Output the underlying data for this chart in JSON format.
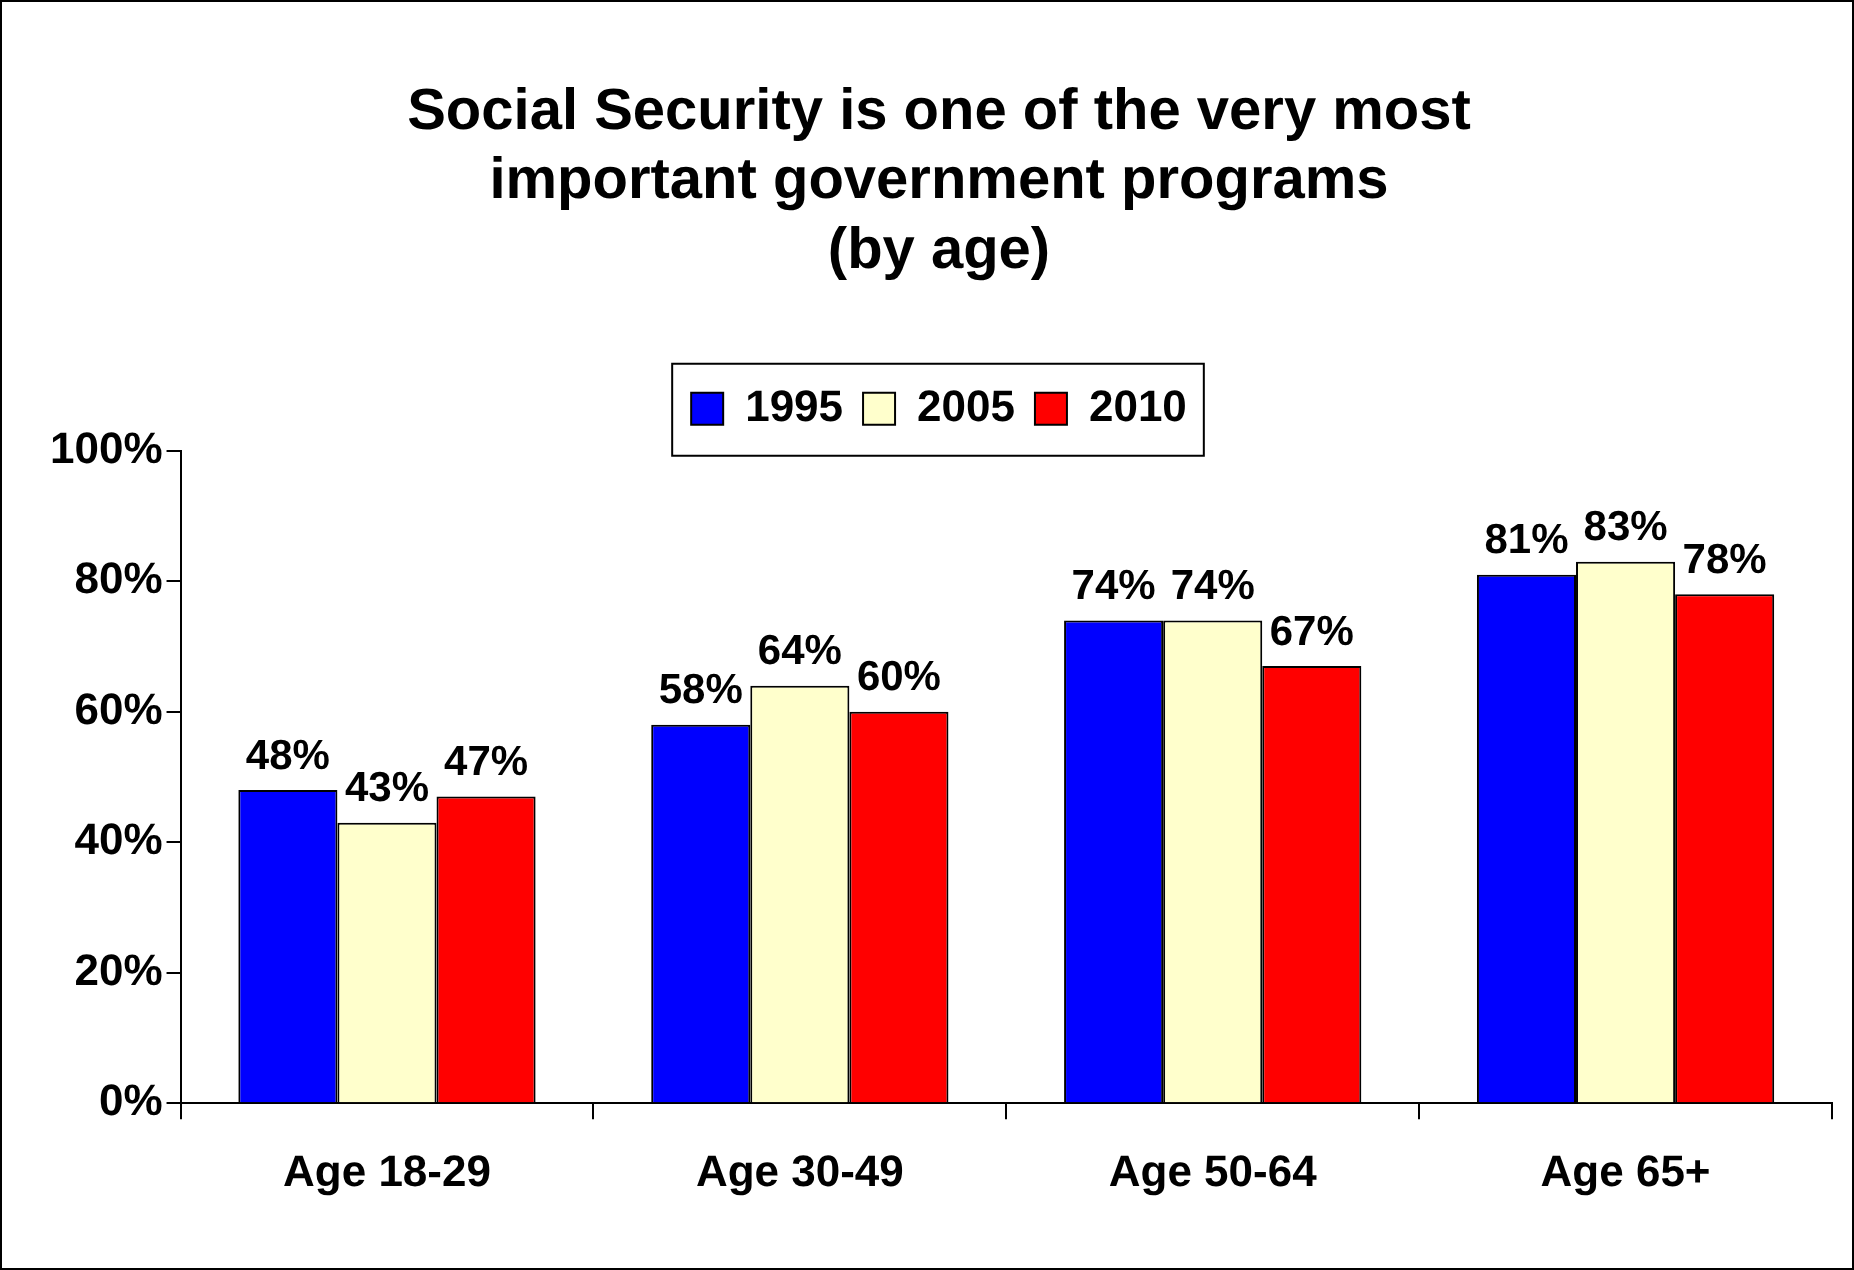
{
  "chart_data": {
    "type": "bar",
    "title": "Social Security is one of the very most\nimportant government programs\n(by age)",
    "categories": [
      "Age 18-29",
      "Age 30-49",
      "Age 50-64",
      "Age 65+"
    ],
    "series": [
      {
        "name": "1995",
        "color": "#0000ff",
        "values": [
          48,
          58,
          74,
          81
        ],
        "value_labels": [
          "48%",
          "58%",
          "74%",
          "81%"
        ]
      },
      {
        "name": "2005",
        "color": "#ffffcc",
        "values": [
          43,
          64,
          74,
          83
        ],
        "value_labels": [
          "43%",
          "64%",
          "74%",
          "83%"
        ]
      },
      {
        "name": "2010",
        "color": "#ff0000",
        "values": [
          47,
          60,
          67,
          78
        ],
        "value_labels": [
          "47%",
          "60%",
          "67%",
          "78%"
        ]
      }
    ],
    "ylim": [
      0,
      100
    ],
    "yticks": [
      {
        "value": 0,
        "label": "0%"
      },
      {
        "value": 20,
        "label": "20%"
      },
      {
        "value": 40,
        "label": "40%"
      },
      {
        "value": 60,
        "label": "60%"
      },
      {
        "value": 80,
        "label": "80%"
      },
      {
        "value": 100,
        "label": "100%"
      }
    ],
    "grid": false,
    "legend": "top"
  }
}
